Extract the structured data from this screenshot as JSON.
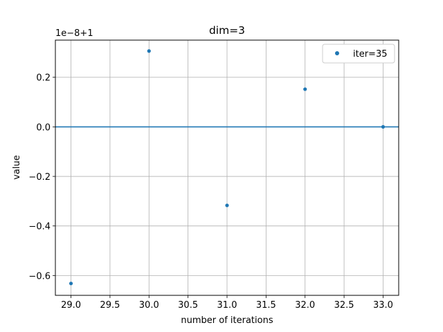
{
  "chart_data": {
    "type": "scatter",
    "title": "dim=3",
    "xlabel": "number of iterations",
    "ylabel": "value",
    "y_offset_label": "1e−8+1",
    "xlim": [
      28.8,
      33.2
    ],
    "ylim": [
      -0.68,
      0.35
    ],
    "xticks": [
      29.0,
      29.5,
      30.0,
      30.5,
      31.0,
      31.5,
      32.0,
      32.5,
      33.0
    ],
    "xtick_labels": [
      "29.0",
      "29.5",
      "30.0",
      "30.5",
      "31.0",
      "31.5",
      "32.0",
      "32.5",
      "33.0"
    ],
    "yticks": [
      -0.6,
      -0.4,
      -0.2,
      0.0,
      0.2
    ],
    "ytick_labels": [
      "−0.6",
      "−0.4",
      "−0.2",
      "0.0",
      "0.2"
    ],
    "grid": true,
    "legend_position": "top-right",
    "hline": 0.0,
    "series": [
      {
        "name": "iter=35",
        "color": "#1f77b4",
        "x": [
          29,
          30,
          31,
          32,
          33
        ],
        "y": [
          -0.632,
          0.306,
          -0.317,
          0.152,
          0.0
        ]
      }
    ]
  }
}
